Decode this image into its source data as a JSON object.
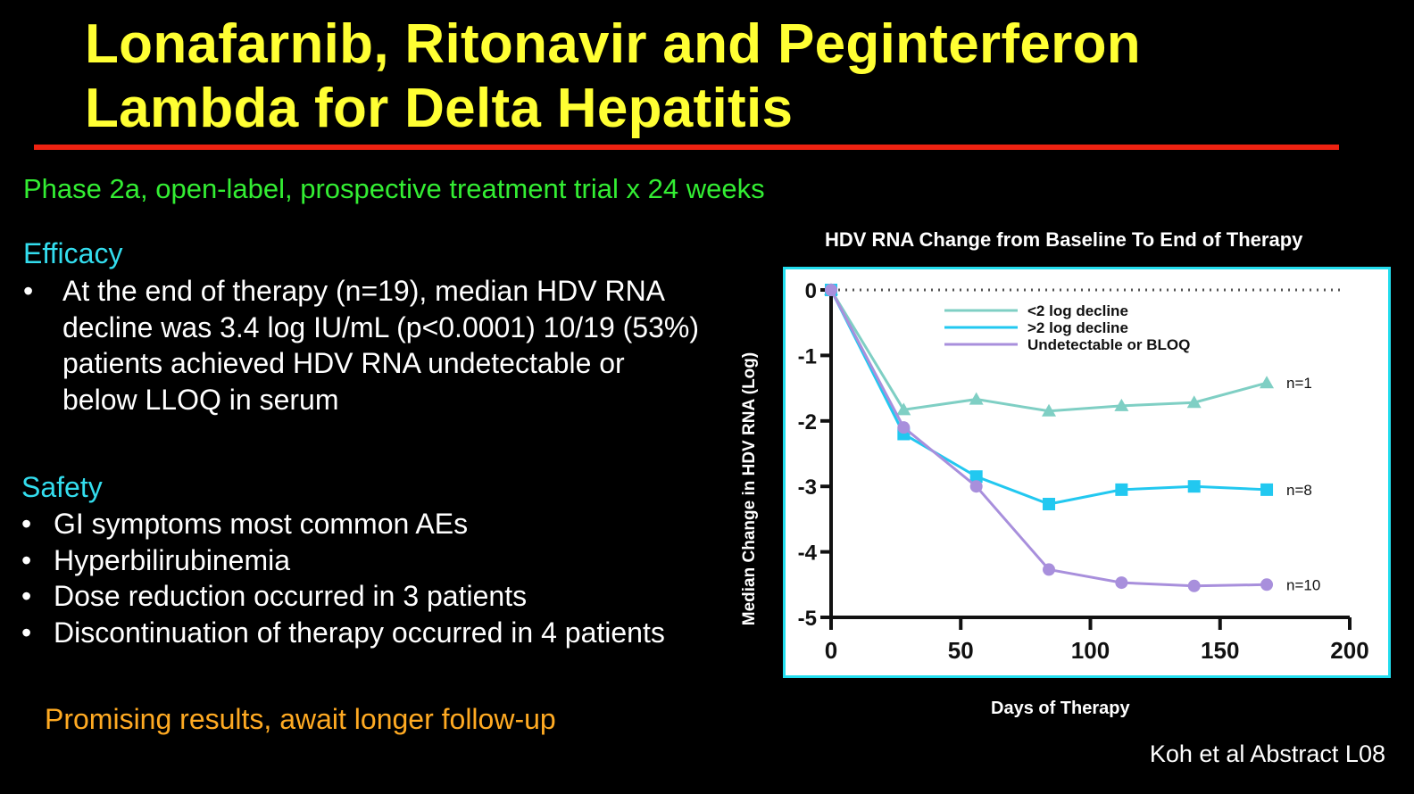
{
  "slide": {
    "title_line1": "Lonafarnib, Ritonavir and Peginterferon",
    "title_line2": "Lambda for Delta Hepatitis",
    "subtitle": "Phase 2a, open-label, prospective treatment trial x 24 weeks",
    "efficacy": {
      "heading": "Efficacy",
      "items": [
        "At the end of therapy (n=19), median HDV RNA decline was 3.4 log IU/mL (p<0.0001) 10/19 (53%) patients achieved HDV RNA undetectable or below LLOQ in serum"
      ]
    },
    "safety": {
      "heading": "Safety",
      "items": [
        "GI symptoms most common AEs",
        "Hyperbilirubinemia",
        "Dose reduction occurred in 3 patients",
        "Discontinuation of therapy occurred in 4 patients"
      ]
    },
    "conclusion": "Promising results, await longer follow-up",
    "citation": "Koh et al Abstract L08",
    "colors": {
      "title": "#ffff33",
      "rule": "#ee2211",
      "subtitle": "#33ee33",
      "heading": "#33ddee",
      "conclusion": "#ffaa22",
      "chart_border": "#22ddee"
    }
  },
  "chart_data": {
    "type": "line",
    "title": "HDV RNA Change from Baseline To End of Therapy",
    "xlabel": "Days of Therapy",
    "ylabel": "Median Change in HDV RNA (Log)",
    "xlim": [
      0,
      200
    ],
    "ylim": [
      -5,
      0
    ],
    "xticks": [
      0,
      50,
      100,
      150,
      200
    ],
    "yticks": [
      0,
      -1,
      -2,
      -3,
      -4,
      -5
    ],
    "grid": false,
    "legend_position": "top-center",
    "reference_line": {
      "y": 0,
      "style": "dotted"
    },
    "x": [
      0,
      28,
      56,
      84,
      112,
      140,
      168
    ],
    "series": [
      {
        "name": "<2 log decline",
        "marker": "triangle",
        "color": "#7fcfc4",
        "end_label": "n=1",
        "values": [
          0,
          -1.83,
          -1.67,
          -1.85,
          -1.77,
          -1.72,
          -1.42
        ]
      },
      {
        "name": ">2 log decline",
        "marker": "square",
        "color": "#22c8f0",
        "end_label": "n=8",
        "values": [
          0,
          -2.2,
          -2.85,
          -3.27,
          -3.05,
          -3.0,
          -3.05
        ]
      },
      {
        "name": "Undetectable or BLOQ",
        "marker": "circle",
        "color": "#a88fdc",
        "end_label": "n=10",
        "values": [
          0,
          -2.1,
          -3.0,
          -4.27,
          -4.47,
          -4.52,
          -4.5
        ]
      }
    ]
  }
}
